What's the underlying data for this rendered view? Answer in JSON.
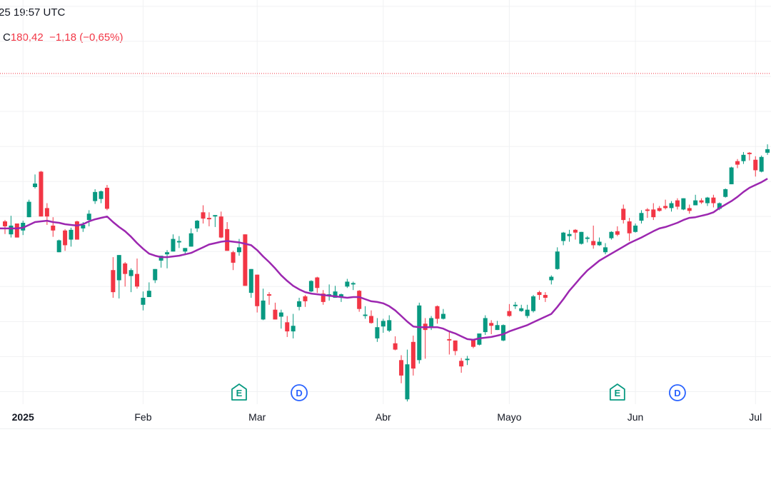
{
  "header": {
    "time_fragment": "25 19:57 UTC",
    "close_label": "C",
    "close_value": "180,42",
    "change": "−1,18",
    "change_pct": "(−0,65%)"
  },
  "colors": {
    "up": "#089981",
    "down": "#F23645",
    "moving_average": "#9C27B0",
    "earnings_marker": "#089981",
    "dividend_marker": "#2962FF",
    "price_line": "#F23645",
    "grid": "#F0F1F3"
  },
  "chart_data": {
    "type": "candlestick",
    "title": "",
    "xlabel": "",
    "ylabel": "",
    "grid": true,
    "ylim": [
      132.5,
      190.9
    ],
    "y_gridlines": [
      135,
      140,
      145,
      150,
      155,
      160,
      165,
      170,
      175,
      180,
      185,
      190
    ],
    "last_price_line": 180.42,
    "x_tick_labels": [
      {
        "index": 3,
        "label": "2025",
        "bold": true
      },
      {
        "index": 23,
        "label": "Feb"
      },
      {
        "index": 42,
        "label": "Mar"
      },
      {
        "index": 63,
        "label": "Abr"
      },
      {
        "index": 84,
        "label": "Mayo"
      },
      {
        "index": 105,
        "label": "Jun"
      },
      {
        "index": 125,
        "label": "Jul"
      }
    ],
    "events": [
      {
        "index": 39,
        "type": "earnings",
        "label": "E"
      },
      {
        "index": 49,
        "type": "dividend",
        "label": "D"
      },
      {
        "index": 102,
        "type": "earnings",
        "label": "E"
      },
      {
        "index": 112,
        "type": "dividend",
        "label": "D"
      }
    ],
    "ohlc": [
      [
        159.3,
        159.5,
        157.5,
        158.6
      ],
      [
        157.45,
        160.1,
        157.0,
        158.7
      ],
      [
        159.0,
        159.0,
        157.0,
        157.0
      ],
      [
        158.0,
        159.4,
        157.35,
        159.1
      ],
      [
        159.9,
        162.4,
        159.9,
        162.1
      ],
      [
        164.2,
        166.0,
        164.0,
        164.7
      ],
      [
        166.4,
        166.5,
        160.0,
        160.0
      ],
      [
        161.2,
        161.9,
        158.8,
        160.0
      ],
      [
        158.7,
        159.9,
        157.1,
        158.0
      ],
      [
        154.9,
        156.7,
        154.9,
        156.6
      ],
      [
        158.0,
        158.2,
        155.1,
        155.9
      ],
      [
        156.7,
        158.4,
        155.7,
        158.1
      ],
      [
        159.3,
        159.4,
        156.7,
        156.7
      ],
      [
        158.3,
        159.2,
        157.8,
        158.8
      ],
      [
        159.5,
        160.9,
        158.6,
        160.4
      ],
      [
        162.2,
        163.9,
        161.8,
        163.5
      ],
      [
        162.5,
        163.7,
        161.9,
        163.6
      ],
      [
        164.1,
        164.5,
        160.9,
        161.1
      ],
      [
        152.35,
        154.2,
        148.4,
        149.2
      ],
      [
        150.9,
        154.5,
        148.3,
        154.5
      ],
      [
        153.3,
        153.5,
        150.0,
        151.8
      ],
      [
        151.5,
        152.6,
        149.2,
        152.35
      ],
      [
        151.8,
        154.0,
        149.7,
        150.0
      ],
      [
        147.4,
        149.3,
        146.6,
        148.4
      ],
      [
        148.5,
        150.6,
        148.5,
        149.4
      ],
      [
        150.9,
        152.5,
        150.5,
        152.5
      ],
      [
        153.7,
        154.4,
        152.7,
        154.4
      ],
      [
        154.6,
        155.2,
        152.6,
        154.9
      ],
      [
        155.0,
        157.45,
        155.0,
        156.8
      ],
      [
        156.3,
        157.2,
        155.5,
        156.5
      ],
      [
        155.0,
        155.5,
        154.5,
        155.5
      ],
      [
        155.7,
        158.3,
        155.7,
        157.6
      ],
      [
        158.3,
        159.5,
        157.8,
        159.4
      ],
      [
        160.6,
        161.6,
        159.0,
        159.7
      ],
      [
        159.8,
        160.6,
        158.6,
        159.6
      ],
      [
        160.0,
        160.2,
        158.5,
        160.2
      ],
      [
        160.0,
        160.7,
        156.9,
        157.0
      ],
      [
        158.2,
        159.2,
        155.1,
        155.1
      ],
      [
        154.9,
        155.1,
        152.35,
        153.4
      ],
      [
        154.9,
        156.8,
        154.4,
        155.6
      ],
      [
        157.45,
        157.45,
        150.1,
        150.1
      ],
      [
        149.1,
        152.5,
        148.4,
        152.5
      ],
      [
        151.7,
        151.7,
        146.3,
        147.2
      ],
      [
        145.3,
        149.7,
        145.2,
        148.0
      ],
      [
        148.9,
        149.2,
        147.4,
        148.7
      ],
      [
        146.7,
        147.7,
        145.3,
        145.3
      ],
      [
        145.7,
        146.7,
        144.0,
        146.3
      ],
      [
        144.9,
        145.8,
        142.8,
        143.6
      ],
      [
        143.6,
        146.1,
        142.6,
        144.4
      ],
      [
        147.1,
        148.4,
        146.6,
        147.9
      ],
      [
        148.6,
        148.8,
        147.1,
        147.9
      ],
      [
        149.3,
        150.9,
        149.2,
        150.8
      ],
      [
        151.3,
        151.4,
        149.1,
        149.8
      ],
      [
        149.0,
        149.5,
        147.4,
        147.8
      ],
      [
        148.7,
        150.3,
        148.0,
        148.9
      ],
      [
        148.4,
        150.1,
        148.4,
        149.3
      ],
      [
        148.5,
        149.0,
        147.8,
        148.9
      ],
      [
        150.0,
        151.1,
        149.8,
        150.7
      ],
      [
        150.3,
        150.7,
        149.5,
        150.5
      ],
      [
        149.4,
        149.5,
        146.4,
        146.8
      ],
      [
        145.8,
        147.2,
        145.4,
        146.0
      ],
      [
        145.8,
        146.6,
        144.7,
        144.8
      ],
      [
        142.6,
        145.5,
        142.1,
        144.2
      ],
      [
        144.3,
        145.4,
        143.4,
        145.1
      ],
      [
        143.7,
        145.9,
        143.5,
        145.2
      ],
      [
        141.9,
        142.9,
        140.9,
        141.0
      ],
      [
        139.5,
        140.2,
        136.2,
        137.3
      ],
      [
        133.9,
        141.0,
        133.6,
        138.9
      ],
      [
        142.1,
        143.0,
        137.3,
        138.3
      ],
      [
        139.5,
        147.7,
        139.0,
        147.3
      ],
      [
        144.7,
        145.5,
        139.7,
        143.8
      ],
      [
        144.3,
        145.8,
        143.8,
        145.5
      ],
      [
        147.2,
        147.3,
        144.7,
        145.4
      ],
      [
        145.4,
        146.8,
        145.3,
        146.1
      ],
      [
        142.5,
        143.5,
        140.3,
        142.3
      ],
      [
        142.3,
        142.3,
        140.2,
        140.8
      ],
      [
        139.4,
        139.8,
        137.7,
        138.6
      ],
      [
        139.5,
        140.1,
        138.8,
        139.7
      ],
      [
        142.4,
        142.5,
        141.2,
        141.4
      ],
      [
        141.7,
        143.3,
        141.6,
        143.3
      ],
      [
        143.5,
        145.9,
        143.1,
        145.5
      ],
      [
        144.8,
        145.2,
        143.2,
        144.4
      ],
      [
        143.8,
        145.1,
        143.8,
        144.5
      ],
      [
        142.3,
        144.6,
        142.2,
        144.5
      ],
      [
        146.5,
        147.5,
        145.7,
        145.8
      ],
      [
        147.2,
        147.8,
        146.8,
        147.4
      ],
      [
        146.5,
        147.4,
        146.4,
        146.9
      ],
      [
        145.8,
        147.4,
        145.5,
        146.7
      ],
      [
        146.5,
        148.8,
        146.3,
        148.6
      ],
      [
        149.2,
        149.4,
        148.1,
        148.8
      ],
      [
        148.8,
        149.2,
        147.8,
        148.4
      ],
      [
        150.9,
        151.6,
        150.3,
        151.4
      ],
      [
        152.5,
        155.6,
        152.4,
        155.0
      ],
      [
        156.5,
        157.8,
        155.9,
        157.7
      ],
      [
        157.2,
        158.1,
        156.4,
        157.5
      ],
      [
        158.1,
        158.2,
        156.7,
        157.7
      ],
      [
        156.1,
        157.8,
        156.0,
        157.8
      ],
      [
        156.8,
        157.2,
        156.3,
        157.0
      ],
      [
        156.5,
        158.7,
        155.4,
        155.9
      ],
      [
        155.9,
        157.0,
        155.8,
        156.4
      ],
      [
        154.9,
        156.2,
        154.6,
        155.6
      ],
      [
        156.9,
        157.9,
        156.7,
        157.8
      ],
      [
        157.9,
        158.6,
        157.2,
        157.4
      ],
      [
        161.1,
        161.7,
        159.0,
        159.5
      ],
      [
        159.3,
        159.8,
        156.5,
        157.6
      ],
      [
        157.8,
        159.0,
        157.7,
        158.7
      ],
      [
        159.4,
        160.9,
        159.0,
        160.5
      ],
      [
        161.0,
        161.2,
        159.8,
        160.8
      ],
      [
        161.0,
        161.9,
        159.5,
        159.9
      ],
      [
        161.2,
        161.5,
        160.7,
        160.8
      ],
      [
        161.5,
        162.4,
        161.0,
        161.2
      ],
      [
        161.2,
        162.2,
        160.7,
        161.9
      ],
      [
        162.3,
        162.6,
        161.0,
        161.4
      ],
      [
        161.0,
        162.6,
        160.9,
        162.6
      ],
      [
        161.2,
        161.7,
        160.4,
        160.8
      ],
      [
        161.6,
        163.1,
        161.6,
        162.3
      ],
      [
        162.3,
        162.6,
        161.8,
        162.0
      ],
      [
        161.9,
        162.8,
        161.5,
        162.7
      ],
      [
        162.7,
        163.1,
        161.3,
        161.9
      ],
      [
        161.1,
        162.0,
        160.9,
        161.9
      ],
      [
        162.8,
        164.0,
        162.7,
        163.9
      ],
      [
        164.6,
        167.1,
        164.6,
        167.0
      ],
      [
        167.9,
        168.2,
        166.9,
        167.4
      ],
      [
        167.9,
        169.2,
        167.5,
        168.8
      ],
      [
        169.1,
        169.2,
        168.0,
        168.9
      ],
      [
        168.1,
        168.6,
        165.7,
        166.6
      ],
      [
        166.4,
        168.7,
        166.3,
        168.5
      ],
      [
        169.1,
        170.3,
        168.8,
        169.6
      ]
    ],
    "moving_average": [
      158.3,
      158.3,
      158.3,
      158.4,
      158.8,
      159.2,
      159.3,
      159.4,
      159.2,
      159.1,
      158.9,
      158.8,
      158.7,
      158.9,
      159.3,
      159.6,
      159.8,
      160.0,
      159.2,
      158.5,
      157.9,
      157.1,
      156.2,
      155.4,
      154.7,
      154.4,
      154.2,
      154.2,
      154.3,
      154.4,
      154.6,
      154.8,
      155.2,
      155.6,
      156.0,
      156.2,
      156.4,
      156.5,
      156.4,
      156.3,
      156.1,
      155.9,
      155.2,
      154.3,
      153.5,
      152.6,
      151.6,
      150.8,
      150.1,
      149.6,
      149.2,
      149.0,
      148.9,
      148.8,
      148.7,
      148.6,
      148.5,
      148.4,
      148.5,
      148.5,
      148.2,
      147.9,
      147.8,
      147.6,
      147.2,
      146.6,
      145.8,
      145.0,
      144.3,
      144.2,
      144.2,
      144.2,
      144.2,
      144.0,
      143.6,
      143.3,
      142.9,
      142.5,
      142.4,
      142.6,
      142.7,
      142.8,
      143.0,
      143.2,
      143.6,
      143.9,
      144.2,
      144.5,
      144.9,
      145.3,
      145.7,
      146.1,
      147.1,
      148.2,
      149.4,
      150.4,
      151.4,
      152.3,
      153.0,
      153.7,
      154.2,
      154.7,
      155.2,
      155.7,
      156.2,
      156.6,
      157.0,
      157.45,
      157.9,
      158.3,
      158.5,
      158.8,
      159.1,
      159.5,
      159.8,
      159.9,
      160.1,
      160.3,
      160.6,
      161.2,
      161.7,
      162.2,
      162.8,
      163.5,
      164.1,
      164.5,
      164.9,
      165.4
    ]
  }
}
